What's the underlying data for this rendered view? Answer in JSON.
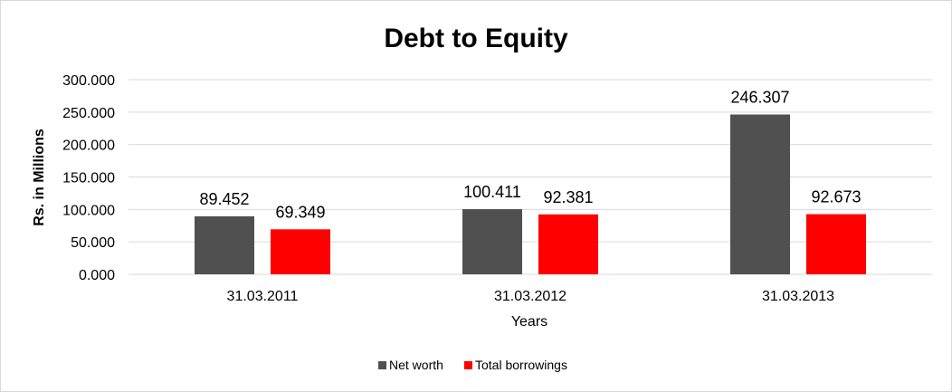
{
  "chart_data": {
    "type": "bar",
    "title": "Debt to Equity",
    "xlabel": "Years",
    "ylabel": "Rs. in Millions",
    "categories": [
      "31.03.2011",
      "31.03.2012",
      "31.03.2013"
    ],
    "series": [
      {
        "name": "Net worth",
        "color": "#505050",
        "values": [
          89.452,
          100.411,
          246.307
        ]
      },
      {
        "name": "Total borrowings",
        "color": "#ff0000",
        "values": [
          69.349,
          92.381,
          92.673
        ]
      }
    ],
    "ylim": [
      0,
      300
    ],
    "yticks": [
      0,
      50,
      100,
      150,
      200,
      250,
      300
    ],
    "ytick_labels": [
      "0.000",
      "50.000",
      "100.000",
      "150.000",
      "200.000",
      "250.000",
      "300.000"
    ],
    "data_labels": [
      [
        "89.452",
        "100.411",
        "246.307"
      ],
      [
        "69.349",
        "92.381",
        "92.673"
      ]
    ],
    "grid": true,
    "legend": "bottom"
  }
}
